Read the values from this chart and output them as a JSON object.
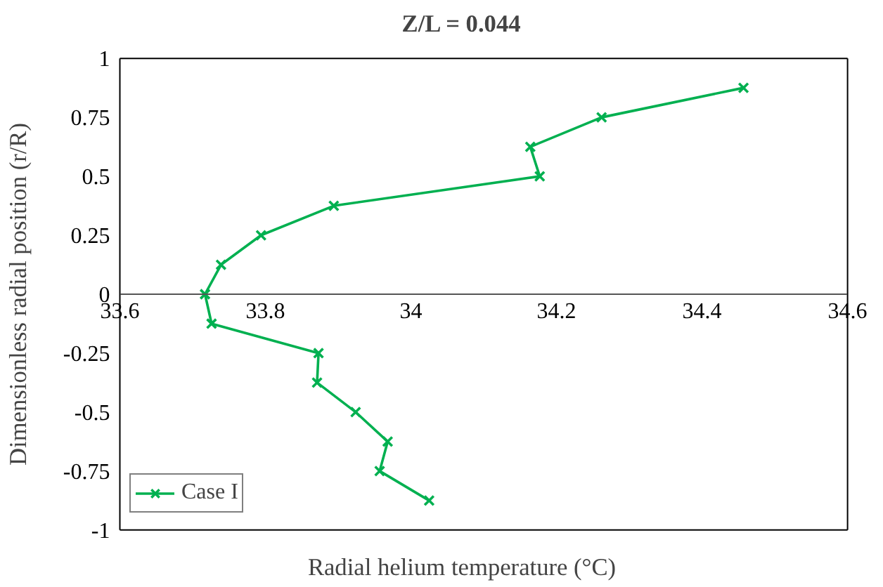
{
  "chart_data": {
    "type": "line",
    "title": "Z/L = 0.044",
    "xlabel": "Radial helium temperature (°C)",
    "ylabel": "Dimensionless radial position (r/R)",
    "series": [
      {
        "name": "Case I",
        "color": "#00b050",
        "x": [
          34.457,
          34.262,
          34.164,
          34.177,
          33.894,
          33.794,
          33.739,
          33.717,
          33.726,
          33.873,
          33.871,
          33.924,
          33.968,
          33.957,
          34.025
        ],
        "values": [
          0.875,
          0.75,
          0.625,
          0.5,
          0.375,
          0.25,
          0.125,
          0,
          -0.125,
          -0.25,
          -0.375,
          -0.5,
          -0.625,
          -0.75,
          -0.875
        ]
      }
    ],
    "xlim": [
      33.6,
      34.6
    ],
    "xticks": [
      33.6,
      33.8,
      34,
      34.2,
      34.4,
      34.6
    ],
    "ylim": [
      -1,
      1
    ],
    "yticks": [
      -1,
      -0.75,
      -0.5,
      -0.25,
      0,
      0.25,
      0.5,
      0.75,
      1
    ],
    "grid": false,
    "legend": "bottom left",
    "marker": "cross",
    "line_style": "solid"
  }
}
